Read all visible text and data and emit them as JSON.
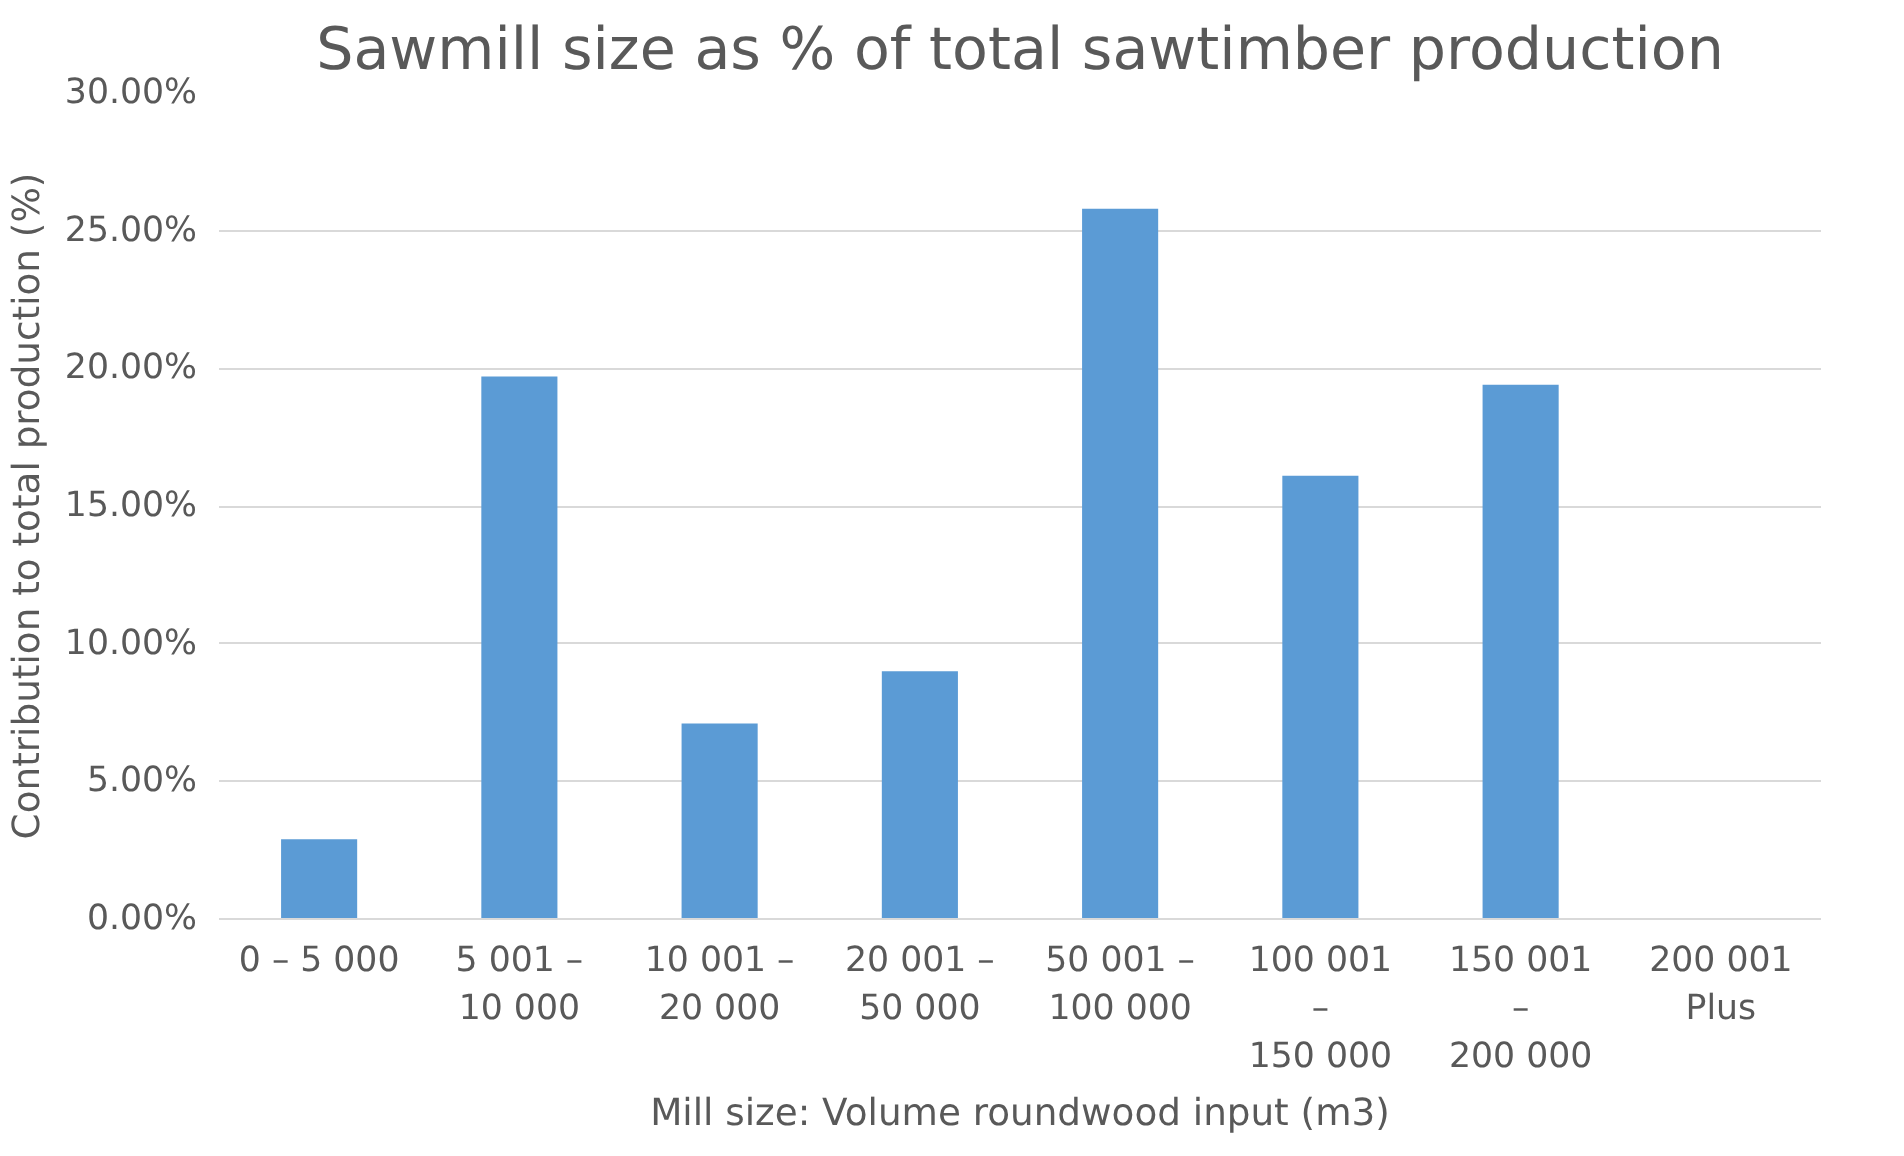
{
  "chart_data": {
    "type": "bar",
    "title": "Sawmill size as % of total sawtimber production",
    "xlabel": "Mill size: Volume roundwood input (m3)",
    "ylabel": "Contribution to total production (%)",
    "categories": [
      "0 – 5 000",
      "5 001 – 10 000",
      "10 001 – 20 000",
      "20 001 – 50 000",
      "50 001 – 100 000",
      "100 001 – 150 000",
      "150 001 – 200 000",
      "200 001 Plus"
    ],
    "values": [
      2.9,
      19.7,
      7.1,
      9.0,
      25.8,
      16.1,
      19.4,
      0
    ],
    "color": "#5b9bd5",
    "ylim": [
      0,
      30
    ],
    "yticks": [
      {
        "value": 0,
        "label": "0.00%"
      },
      {
        "value": 5,
        "label": "5.00%"
      },
      {
        "value": 10,
        "label": "10.00%"
      },
      {
        "value": 15,
        "label": "15.00%"
      },
      {
        "value": 20,
        "label": "20.00%"
      },
      {
        "value": 25,
        "label": "25.00%"
      },
      {
        "value": 30,
        "label": "30.00%"
      }
    ],
    "grid": "y"
  }
}
